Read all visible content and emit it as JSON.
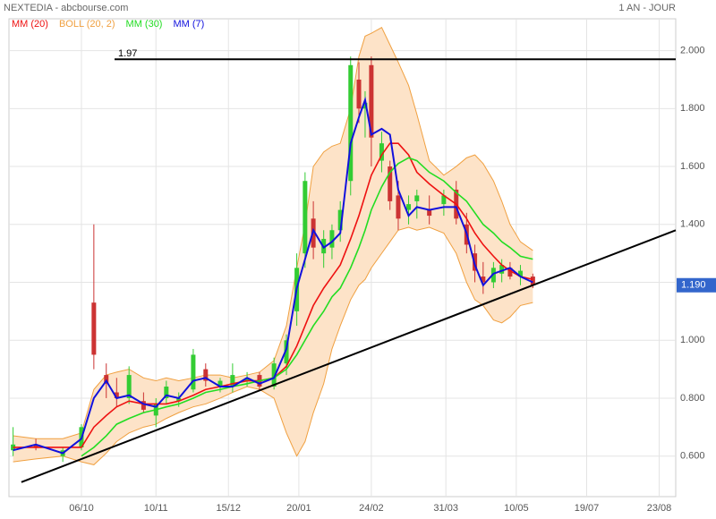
{
  "chart_data": {
    "type": "candlestick",
    "title": "NEXTEDIA - abcbourse.com",
    "period": "1 AN - JOUR",
    "xlim": [
      0,
      322
    ],
    "xticks": [
      {
        "value": 35,
        "label": "06/10"
      },
      {
        "value": 71,
        "label": "10/11"
      },
      {
        "value": 106,
        "label": "15/12"
      },
      {
        "value": 140,
        "label": "20/01"
      },
      {
        "value": 175,
        "label": "24/02"
      },
      {
        "value": 211,
        "label": "31/03"
      },
      {
        "value": 245,
        "label": "10/05"
      },
      {
        "value": 279,
        "label": "19/07"
      },
      {
        "value": 314,
        "label": "23/08"
      }
    ],
    "ylim": [
      0.46,
      2.11
    ],
    "yticks": [
      {
        "value": 0.6,
        "label": "0.600"
      },
      {
        "value": 0.8,
        "label": "0.800"
      },
      {
        "value": 1.0,
        "label": "1.000"
      },
      {
        "value": 1.2,
        "label": "1.200"
      },
      {
        "value": 1.4,
        "label": "1.400"
      },
      {
        "value": 1.6,
        "label": "1.600"
      },
      {
        "value": 1.8,
        "label": "1.800"
      },
      {
        "value": 2.0,
        "label": "2.000"
      }
    ],
    "grid": true,
    "up_color": "#33cc33",
    "down_color": "#cc3333",
    "x": [
      2,
      13,
      26,
      35,
      41,
      47,
      52,
      58,
      65,
      71,
      76,
      82,
      89,
      95,
      102,
      108,
      115,
      121,
      128,
      134,
      139,
      143,
      147,
      152,
      156,
      160,
      165,
      169,
      172,
      175,
      180,
      184,
      188,
      193,
      197,
      203,
      210,
      216,
      221,
      225,
      229,
      234,
      238,
      242,
      247,
      253
    ],
    "candles": {
      "open": [
        0.62,
        0.64,
        0.6,
        0.63,
        1.13,
        0.88,
        0.82,
        0.8,
        0.79,
        0.74,
        0.8,
        0.79,
        0.83,
        0.9,
        0.84,
        0.84,
        0.86,
        0.88,
        0.84,
        0.92,
        1.1,
        1.3,
        1.42,
        1.3,
        1.32,
        1.38,
        1.55,
        1.9,
        1.8,
        1.95,
        1.62,
        1.6,
        1.5,
        1.45,
        1.48,
        1.45,
        1.47,
        1.52,
        1.4,
        1.3,
        1.22,
        1.2,
        1.23,
        1.25,
        1.22,
        1.22
      ],
      "high": [
        0.7,
        0.66,
        0.63,
        0.71,
        1.4,
        0.92,
        0.87,
        0.91,
        0.82,
        0.8,
        0.86,
        0.82,
        0.97,
        0.92,
        0.87,
        0.92,
        0.89,
        0.89,
        0.94,
        1.02,
        1.3,
        1.58,
        1.48,
        1.38,
        1.4,
        1.48,
        1.98,
        1.96,
        1.86,
        1.98,
        1.72,
        1.62,
        1.55,
        1.5,
        1.52,
        1.5,
        1.52,
        1.55,
        1.44,
        1.33,
        1.27,
        1.27,
        1.28,
        1.27,
        1.26,
        1.23
      ],
      "low": [
        0.6,
        0.62,
        0.58,
        0.62,
        0.9,
        0.8,
        0.77,
        0.78,
        0.75,
        0.7,
        0.78,
        0.77,
        0.82,
        0.84,
        0.82,
        0.82,
        0.84,
        0.83,
        0.83,
        0.88,
        1.05,
        1.25,
        1.28,
        1.25,
        1.28,
        1.34,
        1.5,
        1.75,
        1.7,
        1.6,
        1.58,
        1.45,
        1.38,
        1.4,
        1.42,
        1.4,
        1.43,
        1.4,
        1.3,
        1.2,
        1.16,
        1.18,
        1.2,
        1.21,
        1.19,
        1.18
      ],
      "close": [
        0.64,
        0.63,
        0.62,
        0.7,
        0.95,
        0.85,
        0.8,
        0.88,
        0.76,
        0.78,
        0.84,
        0.8,
        0.95,
        0.86,
        0.86,
        0.88,
        0.87,
        0.84,
        0.92,
        1.0,
        1.25,
        1.55,
        1.32,
        1.35,
        1.38,
        1.45,
        1.95,
        1.8,
        1.82,
        1.7,
        1.68,
        1.48,
        1.42,
        1.47,
        1.5,
        1.43,
        1.5,
        1.42,
        1.33,
        1.24,
        1.2,
        1.25,
        1.26,
        1.22,
        1.24,
        1.19
      ]
    },
    "bollinger": {
      "name": "BOLL (20, 2)",
      "color": "#f0a040",
      "fill": "#fde3c8",
      "upper": [
        0.67,
        0.66,
        0.66,
        0.68,
        0.83,
        0.88,
        0.89,
        0.9,
        0.87,
        0.86,
        0.87,
        0.86,
        0.87,
        0.88,
        0.88,
        0.87,
        0.88,
        0.89,
        0.93,
        1.05,
        1.25,
        1.4,
        1.6,
        1.65,
        1.67,
        1.68,
        1.8,
        1.98,
        2.05,
        2.06,
        2.08,
        2.02,
        1.96,
        1.88,
        1.78,
        1.62,
        1.57,
        1.6,
        1.63,
        1.64,
        1.61,
        1.55,
        1.48,
        1.4,
        1.34,
        1.31
      ],
      "lower": [
        0.58,
        0.59,
        0.6,
        0.58,
        0.57,
        0.61,
        0.65,
        0.68,
        0.7,
        0.71,
        0.73,
        0.75,
        0.77,
        0.78,
        0.8,
        0.82,
        0.84,
        0.83,
        0.8,
        0.68,
        0.6,
        0.65,
        0.75,
        0.85,
        0.97,
        1.05,
        1.14,
        1.19,
        1.21,
        1.25,
        1.3,
        1.34,
        1.38,
        1.39,
        1.38,
        1.39,
        1.37,
        1.3,
        1.2,
        1.14,
        1.12,
        1.07,
        1.06,
        1.08,
        1.12,
        1.13
      ]
    },
    "series": [
      {
        "name": "MM (20)",
        "color": "#ee1111",
        "values": [
          0.63,
          0.63,
          0.63,
          0.63,
          0.7,
          0.74,
          0.77,
          0.79,
          0.78,
          0.78,
          0.78,
          0.79,
          0.81,
          0.83,
          0.84,
          0.85,
          0.86,
          0.86,
          0.87,
          0.91,
          0.98,
          1.05,
          1.12,
          1.18,
          1.22,
          1.26,
          1.35,
          1.43,
          1.5,
          1.57,
          1.64,
          1.68,
          1.68,
          1.64,
          1.58,
          1.54,
          1.5,
          1.47,
          1.42,
          1.37,
          1.33,
          1.29,
          1.26,
          1.24,
          1.22,
          1.21
        ]
      },
      {
        "name": "MM (30)",
        "color": "#22dd22",
        "values": [
          null,
          null,
          null,
          0.6,
          0.63,
          0.67,
          0.71,
          0.73,
          0.75,
          0.76,
          0.77,
          0.78,
          0.8,
          0.82,
          0.83,
          0.84,
          0.85,
          0.86,
          0.87,
          0.9,
          0.95,
          1.0,
          1.05,
          1.1,
          1.15,
          1.18,
          1.25,
          1.32,
          1.38,
          1.45,
          1.53,
          1.58,
          1.61,
          1.63,
          1.62,
          1.58,
          1.55,
          1.51,
          1.48,
          1.44,
          1.4,
          1.37,
          1.34,
          1.32,
          1.29,
          1.28
        ]
      },
      {
        "name": "MM (7)",
        "color": "#1111dd",
        "values": [
          0.62,
          0.64,
          0.61,
          0.66,
          0.8,
          0.86,
          0.8,
          0.81,
          0.78,
          0.77,
          0.81,
          0.8,
          0.86,
          0.87,
          0.84,
          0.84,
          0.87,
          0.85,
          0.87,
          0.97,
          1.18,
          1.28,
          1.38,
          1.32,
          1.34,
          1.37,
          1.68,
          1.77,
          1.83,
          1.71,
          1.73,
          1.71,
          1.52,
          1.43,
          1.46,
          1.45,
          1.46,
          1.46,
          1.37,
          1.26,
          1.19,
          1.23,
          1.24,
          1.25,
          1.22,
          1.2
        ]
      }
    ],
    "resistance": {
      "value": 1.97,
      "label": "1.97",
      "x": [
        51,
        322
      ]
    },
    "trendline": {
      "x": [
        6,
        322
      ],
      "y": [
        0.51,
        1.38
      ]
    },
    "last_price": {
      "value": 1.19,
      "label": "1.190",
      "color": "#3366cc"
    }
  }
}
